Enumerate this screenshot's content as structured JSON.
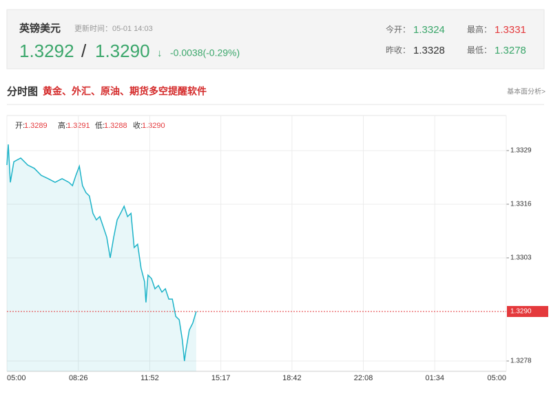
{
  "header": {
    "title": "英镑美元",
    "update_time": "更新时间：05-01 14:03",
    "bid": "1.3292",
    "separator": "/",
    "ask": "1.3290",
    "arrow": "↓",
    "change": "-0.0038(-0.29%)",
    "stats": [
      {
        "label": "今开：",
        "value": "1.3324"
      },
      {
        "label": "最高：",
        "value": "1.3331"
      },
      {
        "label": "昨收：",
        "value": "1.3328"
      },
      {
        "label": "最低：",
        "value": "1.3278"
      }
    ]
  },
  "nav": {
    "title": "分时图",
    "ad": "黄金、外汇、原油、期货多空提醒软件",
    "link": "基本面分析>"
  },
  "chart_data": {
    "type": "area-line",
    "info": [
      {
        "label": "开:",
        "value": "1.3289"
      },
      {
        "label": "高:",
        "value": "1.3291"
      },
      {
        "label": "低:",
        "value": "1.3288"
      },
      {
        "label": "收:",
        "value": "1.3290"
      }
    ],
    "x": [
      0,
      4,
      10,
      20,
      40,
      60,
      79,
      99,
      119,
      139,
      159,
      179,
      189,
      199,
      209,
      218,
      228,
      238,
      248,
      258,
      268,
      278,
      288,
      298,
      308,
      318,
      328,
      338,
      348,
      358,
      367,
      377,
      387,
      397,
      401,
      407,
      417,
      427,
      437,
      447,
      457,
      467,
      477,
      487,
      497,
      506,
      512,
      516,
      526,
      536,
      546
    ],
    "series": [
      {
        "color": "#1cb3c8",
        "values": [
          1.33255,
          1.33305,
          1.33213,
          1.33263,
          1.33272,
          1.33255,
          1.33247,
          1.3323,
          1.33222,
          1.33213,
          1.33222,
          1.33213,
          1.33205,
          1.3323,
          1.33252,
          1.33205,
          1.33188,
          1.3318,
          1.33138,
          1.33122,
          1.3313,
          1.33105,
          1.3308,
          1.3303,
          1.3308,
          1.33122,
          1.33138,
          1.33155,
          1.3313,
          1.33138,
          1.33055,
          1.33063,
          1.33005,
          1.32972,
          1.32922,
          1.32988,
          1.3298,
          1.32955,
          1.32963,
          1.32947,
          1.32955,
          1.3293,
          1.3293,
          1.32888,
          1.3288,
          1.3283,
          1.3278,
          1.32805,
          1.32855,
          1.32872,
          1.329
        ]
      }
    ],
    "xlim": [
      0,
      1440
    ],
    "xticks": [
      {
        "value": 0,
        "label": "05:00"
      },
      {
        "value": 206,
        "label": "08:26"
      },
      {
        "value": 412,
        "label": "11:52"
      },
      {
        "value": 617,
        "label": "15:17"
      },
      {
        "value": 822,
        "label": "18:42"
      },
      {
        "value": 1028,
        "label": "22:08"
      },
      {
        "value": 1234,
        "label": "01:34"
      },
      {
        "value": 1440,
        "label": "05:00"
      }
    ],
    "ylim": [
      1.32755,
      1.33375
    ],
    "yticks": [
      1.3278,
      1.3303,
      1.3316,
      1.3329
    ],
    "last_price": {
      "value": 1.329,
      "label": "1.3290",
      "color": "#e4393c"
    },
    "grid": true
  }
}
